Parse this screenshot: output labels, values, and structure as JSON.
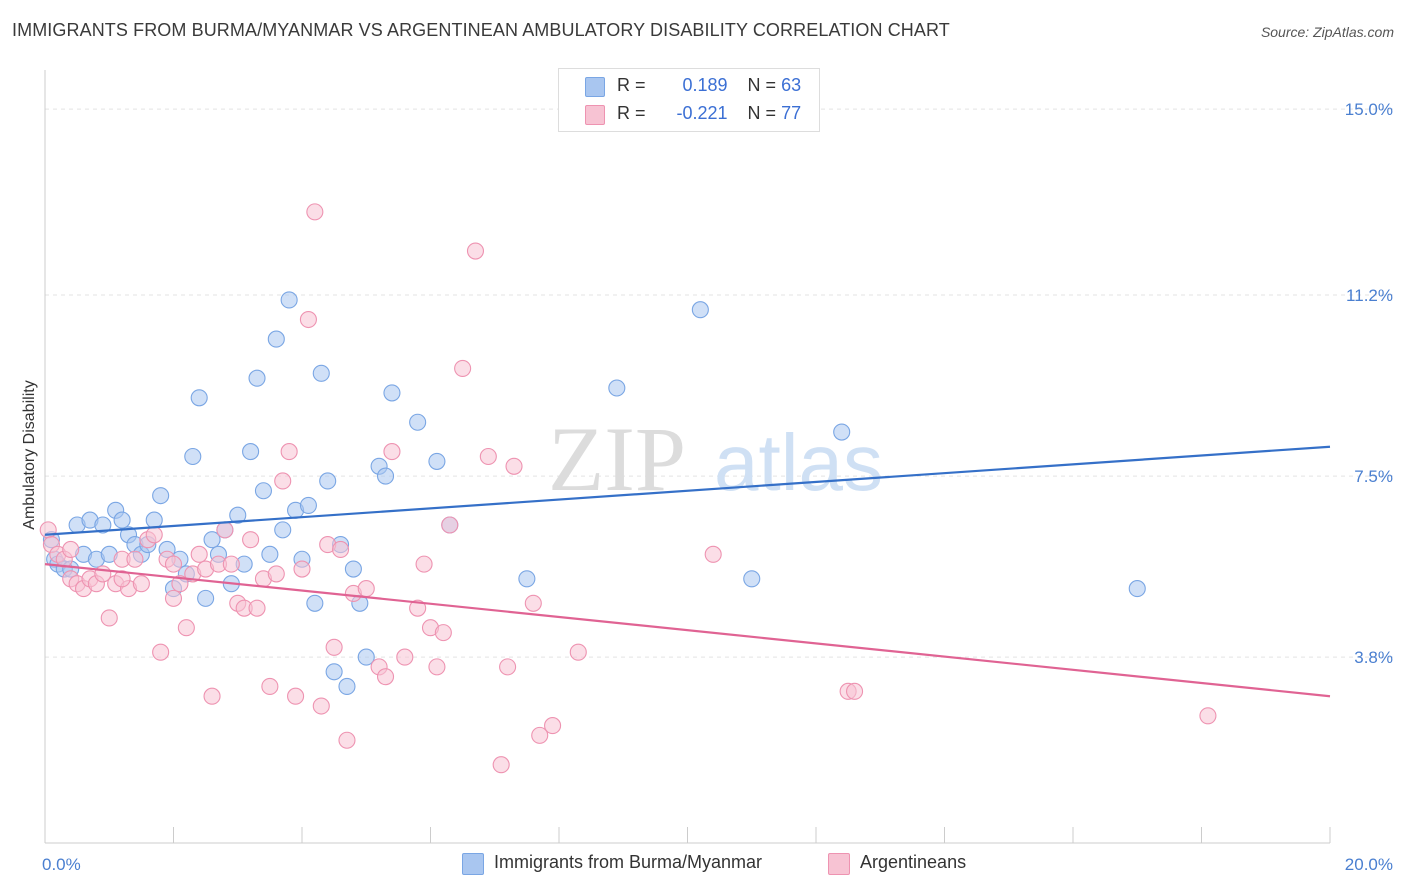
{
  "title": "IMMIGRANTS FROM BURMA/MYANMAR VS ARGENTINEAN AMBULATORY DISABILITY CORRELATION CHART",
  "source": "Source: ZipAtlas.com",
  "watermark": {
    "zip": "ZIP",
    "atlas": "atlas"
  },
  "legend_top": {
    "r_label": "R =",
    "n_label": "N =",
    "rows": [
      {
        "r": "0.189",
        "n": "63",
        "color": "#a9c6f0",
        "border": "#7aa6e4"
      },
      {
        "r": "-0.221",
        "n": "77",
        "color": "#f7c3d3",
        "border": "#ee93b1"
      }
    ]
  },
  "chart_data": {
    "type": "scatter",
    "ylabel": "Ambulatory Disability",
    "xlabel": "",
    "xlim": [
      0,
      20
    ],
    "ylim": [
      0,
      15.8
    ],
    "x_tick_labels": [
      {
        "value": 0,
        "label": "0.0%"
      },
      {
        "value": 20,
        "label": "20.0%"
      }
    ],
    "y_tick_labels": [
      {
        "value": 3.8,
        "label": "3.8%"
      },
      {
        "value": 7.5,
        "label": "7.5%"
      },
      {
        "value": 11.2,
        "label": "11.2%"
      },
      {
        "value": 15.0,
        "label": "15.0%"
      }
    ],
    "grid": true,
    "legend_position": "bottom",
    "series": [
      {
        "name": "Immigrants from Burma/Myanmar",
        "color": "#7aa6e4",
        "fill": "#a9c6f0",
        "line_color": "#3570c8",
        "trend": [
          [
            0,
            6.3
          ],
          [
            20,
            8.1
          ]
        ],
        "points": [
          [
            0.1,
            6.2
          ],
          [
            0.15,
            5.8
          ],
          [
            0.2,
            5.7
          ],
          [
            0.3,
            5.6
          ],
          [
            0.4,
            5.6
          ],
          [
            0.5,
            6.5
          ],
          [
            0.6,
            5.9
          ],
          [
            0.7,
            6.6
          ],
          [
            0.8,
            5.8
          ],
          [
            0.9,
            6.5
          ],
          [
            1.0,
            5.9
          ],
          [
            1.1,
            6.8
          ],
          [
            1.2,
            6.6
          ],
          [
            1.3,
            6.3
          ],
          [
            1.4,
            6.1
          ],
          [
            1.5,
            5.9
          ],
          [
            1.6,
            6.1
          ],
          [
            1.7,
            6.6
          ],
          [
            1.8,
            7.1
          ],
          [
            1.9,
            6.0
          ],
          [
            2.0,
            5.2
          ],
          [
            2.1,
            5.8
          ],
          [
            2.2,
            5.5
          ],
          [
            2.3,
            7.9
          ],
          [
            2.4,
            9.1
          ],
          [
            2.5,
            5.0
          ],
          [
            2.6,
            6.2
          ],
          [
            2.7,
            5.9
          ],
          [
            2.8,
            6.4
          ],
          [
            2.9,
            5.3
          ],
          [
            3.0,
            6.7
          ],
          [
            3.1,
            5.7
          ],
          [
            3.2,
            8.0
          ],
          [
            3.3,
            9.5
          ],
          [
            3.4,
            7.2
          ],
          [
            3.5,
            5.9
          ],
          [
            3.6,
            10.3
          ],
          [
            3.7,
            6.4
          ],
          [
            3.8,
            11.1
          ],
          [
            3.9,
            6.8
          ],
          [
            4.0,
            5.8
          ],
          [
            4.1,
            6.9
          ],
          [
            4.2,
            4.9
          ],
          [
            4.3,
            9.6
          ],
          [
            4.4,
            7.4
          ],
          [
            4.5,
            3.5
          ],
          [
            4.6,
            6.1
          ],
          [
            4.7,
            3.2
          ],
          [
            4.8,
            5.6
          ],
          [
            4.9,
            4.9
          ],
          [
            5.0,
            3.8
          ],
          [
            5.2,
            7.7
          ],
          [
            5.3,
            7.5
          ],
          [
            5.4,
            9.2
          ],
          [
            5.8,
            8.6
          ],
          [
            6.1,
            7.8
          ],
          [
            6.3,
            6.5
          ],
          [
            7.5,
            5.4
          ],
          [
            8.9,
            9.3
          ],
          [
            10.2,
            10.9
          ],
          [
            11.0,
            5.4
          ],
          [
            12.4,
            8.4
          ],
          [
            17.0,
            5.2
          ]
        ]
      },
      {
        "name": "Argentineans",
        "color": "#ee93b1",
        "fill": "#f7c3d3",
        "line_color": "#e06393",
        "trend": [
          [
            0,
            5.7
          ],
          [
            20,
            3.0
          ]
        ],
        "points": [
          [
            0.05,
            6.4
          ],
          [
            0.1,
            6.1
          ],
          [
            0.2,
            5.9
          ],
          [
            0.3,
            5.8
          ],
          [
            0.4,
            5.4
          ],
          [
            0.5,
            5.3
          ],
          [
            0.6,
            5.2
          ],
          [
            0.7,
            5.4
          ],
          [
            0.8,
            5.3
          ],
          [
            0.9,
            5.5
          ],
          [
            1.0,
            4.6
          ],
          [
            1.1,
            5.3
          ],
          [
            1.2,
            5.8
          ],
          [
            1.3,
            5.2
          ],
          [
            1.4,
            5.8
          ],
          [
            1.5,
            5.3
          ],
          [
            1.6,
            6.2
          ],
          [
            1.7,
            6.3
          ],
          [
            1.8,
            3.9
          ],
          [
            1.9,
            5.8
          ],
          [
            2.0,
            5.0
          ],
          [
            2.1,
            5.3
          ],
          [
            2.2,
            4.4
          ],
          [
            2.3,
            5.5
          ],
          [
            2.4,
            5.9
          ],
          [
            2.5,
            5.6
          ],
          [
            2.6,
            3.0
          ],
          [
            2.7,
            5.7
          ],
          [
            2.8,
            6.4
          ],
          [
            2.9,
            5.7
          ],
          [
            3.0,
            4.9
          ],
          [
            3.1,
            4.8
          ],
          [
            3.2,
            6.2
          ],
          [
            3.3,
            4.8
          ],
          [
            3.4,
            5.4
          ],
          [
            3.5,
            3.2
          ],
          [
            3.6,
            5.5
          ],
          [
            3.7,
            7.4
          ],
          [
            3.8,
            8.0
          ],
          [
            3.9,
            3.0
          ],
          [
            4.0,
            5.6
          ],
          [
            4.1,
            10.7
          ],
          [
            4.2,
            12.9
          ],
          [
            4.3,
            2.8
          ],
          [
            4.4,
            6.1
          ],
          [
            4.5,
            4.0
          ],
          [
            4.6,
            6.0
          ],
          [
            4.7,
            2.1
          ],
          [
            4.8,
            5.1
          ],
          [
            5.0,
            5.2
          ],
          [
            5.2,
            3.6
          ],
          [
            5.3,
            3.4
          ],
          [
            5.4,
            8.0
          ],
          [
            5.6,
            3.8
          ],
          [
            5.8,
            4.8
          ],
          [
            5.9,
            5.7
          ],
          [
            6.0,
            4.4
          ],
          [
            6.1,
            3.6
          ],
          [
            6.2,
            4.3
          ],
          [
            6.3,
            6.5
          ],
          [
            6.5,
            9.7
          ],
          [
            6.7,
            12.1
          ],
          [
            6.9,
            7.9
          ],
          [
            7.1,
            1.6
          ],
          [
            7.2,
            3.6
          ],
          [
            7.3,
            7.7
          ],
          [
            7.6,
            4.9
          ],
          [
            7.7,
            2.2
          ],
          [
            7.9,
            2.4
          ],
          [
            8.3,
            3.9
          ],
          [
            10.4,
            5.9
          ],
          [
            12.5,
            3.1
          ],
          [
            12.6,
            3.1
          ],
          [
            18.1,
            2.6
          ],
          [
            0.4,
            6.0
          ],
          [
            1.2,
            5.4
          ],
          [
            2.0,
            5.7
          ]
        ]
      }
    ]
  }
}
